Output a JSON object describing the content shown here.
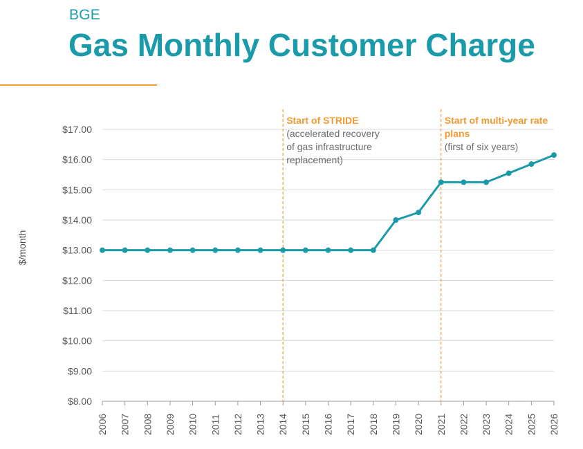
{
  "header": {
    "supertitle": "BGE",
    "title": "Gas Monthly Customer Charge"
  },
  "colors": {
    "title": "#1b9aaa",
    "line": "#1b9aaa",
    "accent": "#f09a2f",
    "grid": "#d9d9d9"
  },
  "chart_data": {
    "type": "line",
    "title": "Gas Monthly Customer Charge",
    "xlabel": "",
    "ylabel": "$/month",
    "x": [
      "2006",
      "2007",
      "2008",
      "2009",
      "2010",
      "2011",
      "2012",
      "2013",
      "2014",
      "2015",
      "2016",
      "2017",
      "2018",
      "2019",
      "2020",
      "2021",
      "2022",
      "2023",
      "2024",
      "2025",
      "2026"
    ],
    "series": [
      {
        "values": [
          13.0,
          13.0,
          13.0,
          13.0,
          13.0,
          13.0,
          13.0,
          13.0,
          13.0,
          13.0,
          13.0,
          13.0,
          13.0,
          14.0,
          14.25,
          15.25,
          15.25,
          15.25,
          15.55,
          15.85,
          16.15
        ]
      }
    ],
    "ylim": [
      8,
      17
    ],
    "yticks": [
      17,
      16,
      15,
      14,
      13,
      12,
      11,
      10,
      9,
      8
    ],
    "ytick_labels": [
      "$17.00",
      "$16.00",
      "$15.00",
      "$14.00",
      "$13.00",
      "$12.00",
      "$11.00",
      "$10.00",
      "$9.00",
      "$8.00"
    ],
    "grid": true,
    "annotations": [
      {
        "x": "2014",
        "title_lines": [
          "Start of STRIDE"
        ],
        "text_lines": [
          "(accelerated recovery",
          "of gas infrastructure",
          "replacement)"
        ]
      },
      {
        "x": "2021",
        "title_lines": [
          "Start of multi-year rate",
          "plans"
        ],
        "text_lines": [
          "(first of six years)"
        ]
      }
    ]
  }
}
